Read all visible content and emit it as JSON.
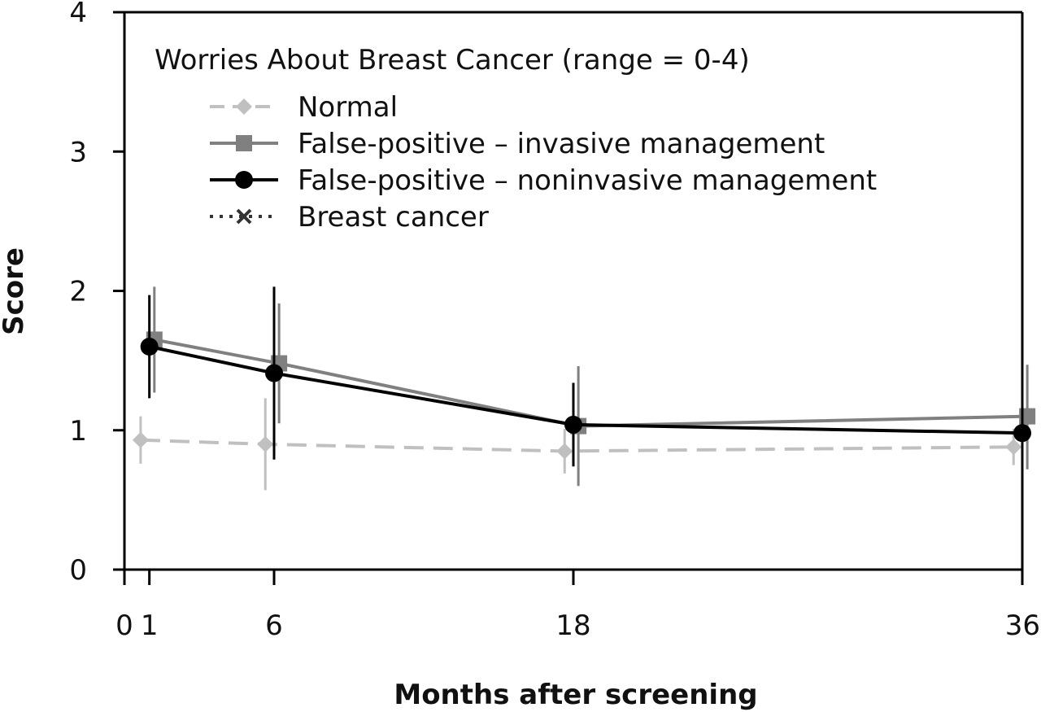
{
  "chart_data": {
    "type": "line",
    "legend_title": "Worries About Breast Cancer (range = 0-4)",
    "legend_position": "top-left",
    "xlabel": "Months after screening",
    "ylabel": "Score",
    "x_ticks": [
      "0",
      "1",
      "6",
      "18",
      "36"
    ],
    "y_ticks": [
      "0",
      "1",
      "2",
      "3",
      "4"
    ],
    "xlim": [
      0,
      36
    ],
    "ylim": [
      0,
      4
    ],
    "grid": false,
    "series": [
      {
        "name": "Normal",
        "color": "#c0c0c0",
        "line": "dashed",
        "marker": "diamond",
        "points": [
          {
            "x": 1,
            "y": 0.93,
            "lo": 0.76,
            "hi": 1.1
          },
          {
            "x": 6,
            "y": 0.9,
            "lo": 0.57,
            "hi": 1.23
          },
          {
            "x": 18,
            "y": 0.85,
            "lo": 0.69,
            "hi": 1.01
          },
          {
            "x": 36,
            "y": 0.88,
            "lo": 0.75,
            "hi": 1.01
          }
        ]
      },
      {
        "name": "False-positive – invasive management",
        "color": "#808080",
        "line": "solid",
        "marker": "square",
        "points": [
          {
            "x": 1,
            "y": 1.65,
            "lo": 1.27,
            "hi": 2.03
          },
          {
            "x": 6,
            "y": 1.48,
            "lo": 1.05,
            "hi": 1.91
          },
          {
            "x": 18,
            "y": 1.03,
            "lo": 0.6,
            "hi": 1.46
          },
          {
            "x": 36,
            "y": 1.1,
            "lo": 0.72,
            "hi": 1.47
          }
        ]
      },
      {
        "name": "False-positive – noninvasive management",
        "color": "#000000",
        "line": "solid",
        "marker": "circle",
        "points": [
          {
            "x": 1,
            "y": 1.6,
            "lo": 1.23,
            "hi": 1.97
          },
          {
            "x": 6,
            "y": 1.41,
            "lo": 0.79,
            "hi": 2.03
          },
          {
            "x": 18,
            "y": 1.04,
            "lo": 0.74,
            "hi": 1.34
          },
          {
            "x": 36,
            "y": 0.98,
            "lo": 0.68,
            "hi": 1.29
          }
        ]
      },
      {
        "name": "Breast cancer",
        "color": "#333333",
        "line": "dotted",
        "marker": "x",
        "points": []
      }
    ]
  }
}
